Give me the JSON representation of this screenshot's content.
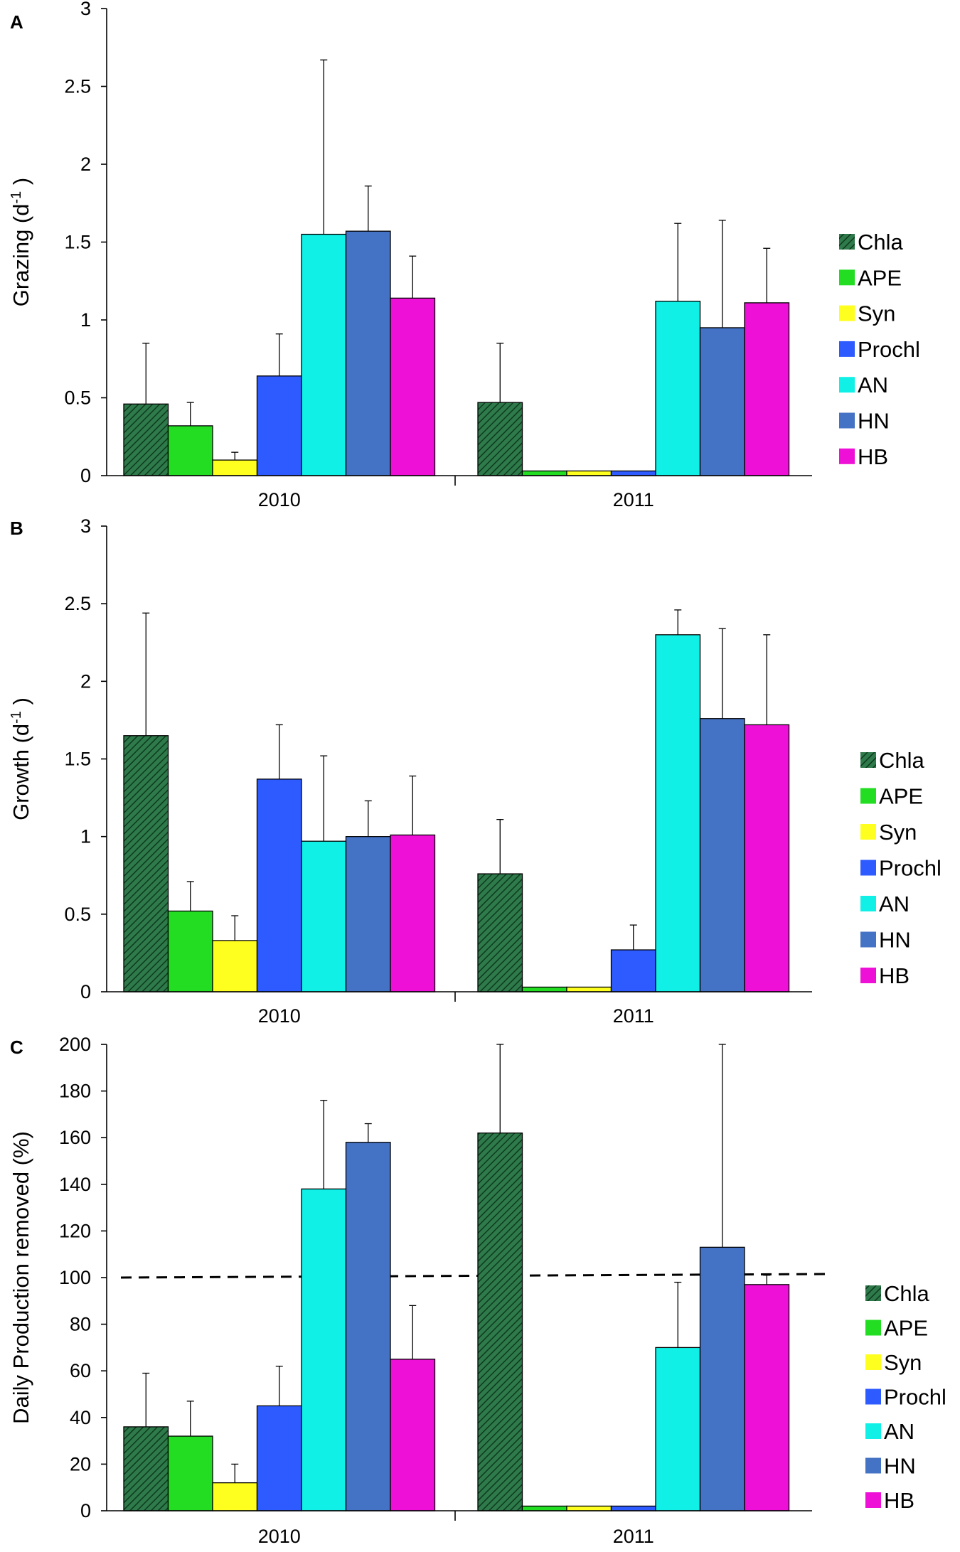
{
  "series_styles": [
    {
      "name": "Chla",
      "color": "#2f7a4a",
      "pattern": "hatched"
    },
    {
      "name": "APE",
      "color": "#22dd22",
      "pattern": "solid"
    },
    {
      "name": "Syn",
      "color": "#ffff1f",
      "pattern": "solid"
    },
    {
      "name": "Prochl",
      "color": "#2d5bff",
      "pattern": "solid"
    },
    {
      "name": "AN",
      "color": "#11f0e6",
      "pattern": "solid"
    },
    {
      "name": "HN",
      "color": "#4472c4",
      "pattern": "solid"
    },
    {
      "name": "HB",
      "color": "#ee10d6",
      "pattern": "solid"
    }
  ],
  "chart_data": [
    {
      "panel": "A",
      "type": "bar",
      "ylabel": "Grazing (d",
      "ylabel_superscript": "-1",
      "ylabel_suffix": " )",
      "categories": [
        "2010",
        "2011"
      ],
      "ylim": [
        0,
        3
      ],
      "yticks": [
        "0",
        "0.5",
        "1",
        "1.5",
        "2",
        "2.5",
        "3"
      ],
      "series": [
        {
          "name": "Chla",
          "values": [
            0.46,
            0.47
          ],
          "errors": [
            0.39,
            0.38
          ]
        },
        {
          "name": "APE",
          "values": [
            0.32,
            0.03
          ],
          "errors": [
            0.15,
            0
          ]
        },
        {
          "name": "Syn",
          "values": [
            0.1,
            0.03
          ],
          "errors": [
            0.05,
            0
          ]
        },
        {
          "name": "Prochl",
          "values": [
            0.64,
            0.03
          ],
          "errors": [
            0.27,
            0
          ]
        },
        {
          "name": "AN",
          "values": [
            1.55,
            1.12
          ],
          "errors": [
            1.12,
            0.5
          ]
        },
        {
          "name": "HN",
          "values": [
            1.57,
            0.95
          ],
          "errors": [
            0.29,
            0.69
          ]
        },
        {
          "name": "HB",
          "values": [
            1.14,
            1.11
          ],
          "errors": [
            0.27,
            0.35
          ]
        }
      ]
    },
    {
      "panel": "B",
      "type": "bar",
      "ylabel": "Growth (d",
      "ylabel_superscript": "-1",
      "ylabel_suffix": " )",
      "categories": [
        "2010",
        "2011"
      ],
      "ylim": [
        0,
        3
      ],
      "yticks": [
        "0",
        "0.5",
        "1",
        "1.5",
        "2",
        "2.5",
        "3"
      ],
      "series": [
        {
          "name": "Chla",
          "values": [
            1.65,
            0.76
          ],
          "errors": [
            0.79,
            0.35
          ]
        },
        {
          "name": "APE",
          "values": [
            0.52,
            0.03
          ],
          "errors": [
            0.19,
            0
          ]
        },
        {
          "name": "Syn",
          "values": [
            0.33,
            0.03
          ],
          "errors": [
            0.16,
            0
          ]
        },
        {
          "name": "Prochl",
          "values": [
            1.37,
            0.27
          ],
          "errors": [
            0.35,
            0.16
          ]
        },
        {
          "name": "AN",
          "values": [
            0.97,
            2.3
          ],
          "errors": [
            0.55,
            0.16
          ]
        },
        {
          "name": "HN",
          "values": [
            1.0,
            1.76
          ],
          "errors": [
            0.23,
            0.58
          ]
        },
        {
          "name": "HB",
          "values": [
            1.01,
            1.72
          ],
          "errors": [
            0.38,
            0.58
          ]
        }
      ]
    },
    {
      "panel": "C",
      "type": "bar",
      "ylabel": "Daily Production removed (%)",
      "ylabel_superscript": "",
      "ylabel_suffix": "",
      "categories": [
        "2010",
        "2011"
      ],
      "ylim": [
        0,
        200
      ],
      "yticks": [
        "0",
        "20",
        "40",
        "60",
        "80",
        "100",
        "120",
        "140",
        "160",
        "180",
        "200"
      ],
      "reference_line": 100,
      "series": [
        {
          "name": "Chla",
          "values": [
            36,
            162
          ],
          "errors": [
            23,
            38
          ]
        },
        {
          "name": "APE",
          "values": [
            32,
            2
          ],
          "errors": [
            15,
            0
          ]
        },
        {
          "name": "Syn",
          "values": [
            12,
            2
          ],
          "errors": [
            8,
            0
          ]
        },
        {
          "name": "Prochl",
          "values": [
            45,
            2
          ],
          "errors": [
            17,
            0
          ]
        },
        {
          "name": "AN",
          "values": [
            138,
            70
          ],
          "errors": [
            38,
            28
          ]
        },
        {
          "name": "HN",
          "values": [
            158,
            113
          ],
          "errors": [
            8,
            87
          ]
        },
        {
          "name": "HB",
          "values": [
            65,
            97
          ],
          "errors": [
            23,
            4
          ]
        }
      ]
    }
  ]
}
